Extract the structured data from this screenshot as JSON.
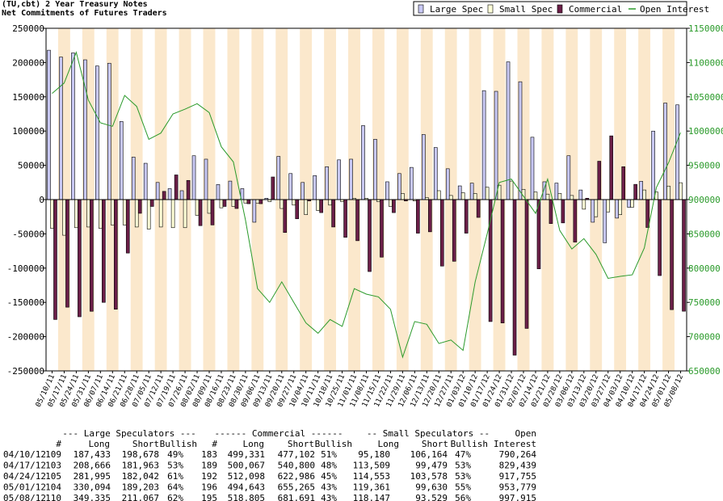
{
  "chart_data": {
    "type": "bar",
    "title": "(TU,cbt) 2 Year Treasury Notes",
    "subtitle": "Net Commitments of Futures Traders",
    "categories": [
      "05/10/11",
      "05/17/11",
      "05/24/11",
      "05/31/11",
      "06/07/11",
      "06/14/11",
      "06/21/11",
      "06/28/11",
      "07/05/11",
      "07/12/11",
      "07/19/11",
      "07/26/11",
      "08/02/11",
      "08/09/11",
      "08/16/11",
      "08/23/11",
      "08/30/11",
      "09/06/11",
      "09/13/11",
      "09/20/11",
      "09/27/11",
      "10/04/11",
      "10/11/11",
      "10/18/11",
      "10/25/11",
      "11/01/11",
      "11/08/11",
      "11/15/11",
      "11/22/11",
      "11/29/11",
      "12/06/11",
      "12/13/11",
      "12/20/11",
      "12/27/11",
      "01/03/12",
      "01/10/12",
      "01/17/12",
      "01/24/12",
      "01/31/12",
      "02/07/12",
      "02/14/12",
      "02/21/12",
      "02/28/12",
      "03/06/12",
      "03/13/12",
      "03/20/12",
      "03/27/12",
      "04/03/12",
      "04/10/12",
      "04/17/12",
      "04/24/12",
      "05/01/12",
      "05/08/12"
    ],
    "series": [
      {
        "name": "Large Spec",
        "color": "#c8c8f4",
        "values": [
          218000,
          208000,
          214000,
          204000,
          195000,
          199000,
          114000,
          62000,
          53000,
          25000,
          16000,
          13000,
          64000,
          59000,
          22000,
          27000,
          16000,
          -33000,
          2000,
          63000,
          38000,
          25000,
          35000,
          48000,
          58000,
          59000,
          108000,
          88000,
          26000,
          38000,
          47000,
          95000,
          76000,
          45000,
          20000,
          24000,
          159000,
          158000,
          201000,
          172000,
          91000,
          26000,
          24000,
          64000,
          14000,
          -33000,
          -63000,
          -27000,
          -11245,
          26703,
          99953,
          140891,
          138268
        ]
      },
      {
        "name": "Small Spec",
        "color": "#ffffd8",
        "values": [
          -42000,
          -52000,
          -41000,
          -40000,
          -42000,
          -37000,
          -37000,
          -40000,
          -43000,
          -40000,
          -41000,
          -41000,
          -23000,
          -20000,
          -12000,
          -10000,
          -5000,
          -5000,
          -3000,
          -13000,
          -8000,
          -22000,
          -16000,
          -8000,
          -3000,
          2000,
          2000,
          -3000,
          -10000,
          9000,
          -2000,
          3000,
          13000,
          6000,
          10000,
          9000,
          18000,
          21000,
          27000,
          15000,
          11000,
          8000,
          9000,
          6000,
          -14000,
          -25000,
          -18000,
          -22000,
          -10984,
          14030,
          10975,
          19731,
          24618
        ]
      },
      {
        "name": "Commercial",
        "color": "#6b1f48",
        "values": [
          -175000,
          -157000,
          -171000,
          -163000,
          -150000,
          -160000,
          -78000,
          -20000,
          -10000,
          12000,
          36000,
          28000,
          -38000,
          -37000,
          -10000,
          -13000,
          -6000,
          -6000,
          33000,
          -48000,
          -28000,
          -2000,
          -19000,
          -40000,
          -55000,
          -60000,
          -105000,
          -84000,
          -19000,
          -2000,
          -49000,
          -47000,
          -97000,
          -90000,
          -49000,
          -26000,
          -178000,
          -180000,
          -227000,
          -188000,
          -101000,
          -35000,
          -34000,
          -62000,
          2000,
          56000,
          93000,
          48000,
          22229,
          -40733,
          -110888,
          -160622,
          -162886
        ]
      },
      {
        "name": "Open Interest",
        "color": "#2a9a2a",
        "type": "line",
        "axis": "y2",
        "values": [
          1055000,
          1070000,
          1115000,
          1045000,
          1012000,
          1007000,
          1052000,
          1036000,
          988000,
          997000,
          1025000,
          1032000,
          1040000,
          1027000,
          977000,
          955000,
          870000,
          770000,
          750000,
          780000,
          750000,
          720000,
          705000,
          725000,
          715000,
          770000,
          762000,
          758000,
          740000,
          670000,
          722000,
          718000,
          690000,
          695000,
          680000,
          780000,
          850000,
          925000,
          930000,
          905000,
          880000,
          930000,
          855000,
          828000,
          843000,
          820000,
          785000,
          788000,
          790264,
          829439,
          917755,
          953779,
          997915
        ]
      }
    ],
    "ylim": [
      -250000,
      250000
    ],
    "yticks": [
      -250000,
      -200000,
      -150000,
      -100000,
      -50000,
      0,
      50000,
      100000,
      150000,
      200000,
      250000
    ],
    "y2lim": [
      650000,
      1150000
    ],
    "y2ticks": [
      650000,
      700000,
      750000,
      800000,
      850000,
      900000,
      950000,
      1000000,
      1050000,
      1100000,
      1150000
    ],
    "legend": "top-right",
    "band_colors": [
      "#ffffff",
      "#fbe8cc"
    ]
  },
  "table": {
    "group_headers": [
      "--- Large Speculators ---",
      "------ Commercial ------",
      "-- Small Speculators --",
      "Open"
    ],
    "columns": [
      "#",
      "Long",
      "Short",
      "Bullish",
      "#",
      "Long",
      "Short",
      "Bullish",
      "Long",
      "Short",
      "Bullish",
      "Interest"
    ],
    "rows": [
      [
        "04/10/12",
        "109",
        "187,433",
        "198,678",
        "49%",
        "183",
        "499,331",
        "477,102",
        "51%",
        "95,180",
        "106,164",
        "47%",
        "790,264"
      ],
      [
        "04/17/12",
        "103",
        "208,666",
        "181,963",
        "53%",
        "189",
        "500,067",
        "540,800",
        "48%",
        "113,509",
        "99,479",
        "53%",
        "829,439"
      ],
      [
        "04/24/12",
        "105",
        "281,995",
        "182,042",
        "61%",
        "192",
        "512,098",
        "622,986",
        "45%",
        "114,553",
        "103,578",
        "53%",
        "917,755"
      ],
      [
        "05/01/12",
        "104",
        "330,094",
        "189,203",
        "64%",
        "196",
        "494,643",
        "655,265",
        "43%",
        "119,361",
        "99,630",
        "55%",
        "953,779"
      ],
      [
        "05/08/12",
        "110",
        "349,335",
        "211,067",
        "62%",
        "195",
        "518,805",
        "681,691",
        "43%",
        "118,147",
        "93,529",
        "56%",
        "997,915"
      ]
    ]
  }
}
